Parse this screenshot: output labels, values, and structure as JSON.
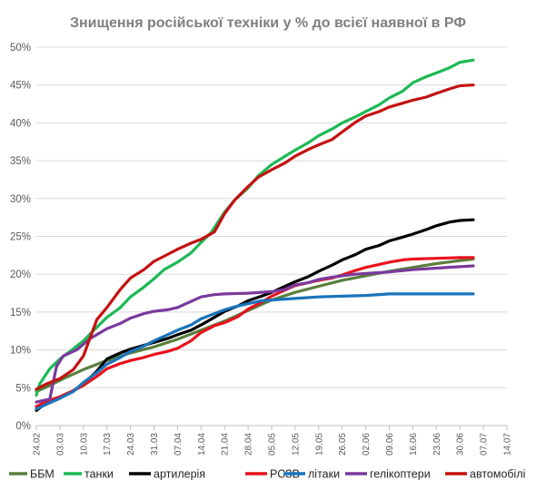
{
  "chart_data": {
    "type": "line",
    "title": "Знищення російської техніки у % до всієї наявної в РФ",
    "xlabel": "",
    "ylabel": "",
    "ylim": [
      0,
      50
    ],
    "y_ticks": [
      "0%",
      "5%",
      "10%",
      "15%",
      "20%",
      "25%",
      "30%",
      "35%",
      "40%",
      "45%",
      "50%"
    ],
    "x_ticks": [
      "24.02",
      "03.03",
      "10.03",
      "17.03",
      "24.03",
      "31.03",
      "07.04",
      "14.04",
      "21.04",
      "28.04",
      "05.05",
      "12.05",
      "19.05",
      "26.05",
      "02.06",
      "09.06",
      "16.06",
      "23.06",
      "30.06",
      "07.07",
      "14.07"
    ],
    "grid": true,
    "legend_position": "bottom",
    "series": [
      {
        "name": "ББМ",
        "color": "#5a7f3c",
        "points": [
          [
            0,
            4.5
          ],
          [
            4,
            5.3
          ],
          [
            8,
            6.2
          ],
          [
            14,
            7.4
          ],
          [
            21,
            8.6
          ],
          [
            28,
            9.6
          ],
          [
            35,
            10.4
          ],
          [
            42,
            11.4
          ],
          [
            49,
            12.6
          ],
          [
            56,
            13.8
          ],
          [
            63,
            15.2
          ],
          [
            70,
            16.6
          ],
          [
            77,
            17.6
          ],
          [
            84,
            18.4
          ],
          [
            91,
            19.2
          ],
          [
            98,
            19.8
          ],
          [
            105,
            20.4
          ],
          [
            112,
            20.9
          ],
          [
            119,
            21.4
          ],
          [
            126,
            21.8
          ],
          [
            130,
            22.0
          ]
        ]
      },
      {
        "name": "танки",
        "color": "#1db954",
        "points": [
          [
            0,
            4.0
          ],
          [
            1,
            5.5
          ],
          [
            4,
            7.5
          ],
          [
            7,
            8.8
          ],
          [
            10,
            9.8
          ],
          [
            14,
            11.2
          ],
          [
            18,
            13.0
          ],
          [
            21,
            14.3
          ],
          [
            25,
            15.6
          ],
          [
            28,
            17.0
          ],
          [
            32,
            18.3
          ],
          [
            35,
            19.4
          ],
          [
            38,
            20.6
          ],
          [
            42,
            21.6
          ],
          [
            46,
            22.8
          ],
          [
            49,
            24.2
          ],
          [
            52,
            25.5
          ],
          [
            56,
            28.2
          ],
          [
            59,
            29.8
          ],
          [
            63,
            31.4
          ],
          [
            66,
            33.0
          ],
          [
            70,
            34.5
          ],
          [
            74,
            35.6
          ],
          [
            77,
            36.4
          ],
          [
            81,
            37.4
          ],
          [
            84,
            38.3
          ],
          [
            88,
            39.2
          ],
          [
            91,
            40.0
          ],
          [
            95,
            40.8
          ],
          [
            98,
            41.5
          ],
          [
            102,
            42.4
          ],
          [
            105,
            43.3
          ],
          [
            109,
            44.2
          ],
          [
            112,
            45.3
          ],
          [
            116,
            46.1
          ],
          [
            119,
            46.6
          ],
          [
            123,
            47.3
          ],
          [
            126,
            48.0
          ],
          [
            130,
            48.3
          ]
        ]
      },
      {
        "name": "артилерія",
        "color": "#000000",
        "points": [
          [
            0,
            2.0
          ],
          [
            3,
            3.0
          ],
          [
            7,
            3.8
          ],
          [
            11,
            4.6
          ],
          [
            14,
            5.5
          ],
          [
            18,
            7.2
          ],
          [
            21,
            8.8
          ],
          [
            25,
            9.6
          ],
          [
            28,
            10.1
          ],
          [
            32,
            10.6
          ],
          [
            35,
            11.0
          ],
          [
            39,
            11.5
          ],
          [
            42,
            12.0
          ],
          [
            46,
            12.6
          ],
          [
            49,
            13.3
          ],
          [
            53,
            14.3
          ],
          [
            56,
            15.1
          ],
          [
            60,
            15.8
          ],
          [
            63,
            16.5
          ],
          [
            67,
            17.1
          ],
          [
            70,
            17.6
          ],
          [
            74,
            18.4
          ],
          [
            77,
            19.0
          ],
          [
            81,
            19.7
          ],
          [
            84,
            20.4
          ],
          [
            88,
            21.2
          ],
          [
            91,
            21.9
          ],
          [
            95,
            22.6
          ],
          [
            98,
            23.3
          ],
          [
            102,
            23.8
          ],
          [
            105,
            24.4
          ],
          [
            109,
            24.9
          ],
          [
            112,
            25.3
          ],
          [
            116,
            25.9
          ],
          [
            119,
            26.4
          ],
          [
            123,
            26.9
          ],
          [
            126,
            27.1
          ],
          [
            130,
            27.2
          ]
        ]
      },
      {
        "name": "РСЗВ",
        "color": "#e8121d",
        "points": [
          [
            0,
            2.5
          ],
          [
            3,
            3.2
          ],
          [
            7,
            3.8
          ],
          [
            11,
            4.6
          ],
          [
            14,
            5.3
          ],
          [
            18,
            6.5
          ],
          [
            21,
            7.5
          ],
          [
            25,
            8.2
          ],
          [
            28,
            8.6
          ],
          [
            32,
            9.0
          ],
          [
            35,
            9.4
          ],
          [
            39,
            9.8
          ],
          [
            42,
            10.2
          ],
          [
            46,
            11.2
          ],
          [
            49,
            12.3
          ],
          [
            53,
            13.2
          ],
          [
            56,
            13.6
          ],
          [
            60,
            14.4
          ],
          [
            63,
            15.4
          ],
          [
            67,
            16.3
          ],
          [
            70,
            17.1
          ],
          [
            74,
            17.9
          ],
          [
            77,
            18.5
          ],
          [
            81,
            18.9
          ],
          [
            84,
            19.2
          ],
          [
            88,
            19.5
          ],
          [
            91,
            19.9
          ],
          [
            95,
            20.5
          ],
          [
            98,
            20.9
          ],
          [
            102,
            21.3
          ],
          [
            105,
            21.6
          ],
          [
            109,
            21.9
          ],
          [
            112,
            22.0
          ],
          [
            119,
            22.1
          ],
          [
            126,
            22.2
          ],
          [
            130,
            22.2
          ]
        ]
      },
      {
        "name": "літаки",
        "color": "#1a74bb",
        "points": [
          [
            0,
            2.2
          ],
          [
            3,
            2.8
          ],
          [
            7,
            3.6
          ],
          [
            11,
            4.5
          ],
          [
            14,
            5.7
          ],
          [
            18,
            7.0
          ],
          [
            21,
            8.1
          ],
          [
            25,
            9.0
          ],
          [
            28,
            9.8
          ],
          [
            32,
            10.5
          ],
          [
            35,
            11.2
          ],
          [
            39,
            12.0
          ],
          [
            42,
            12.6
          ],
          [
            46,
            13.3
          ],
          [
            49,
            14.1
          ],
          [
            53,
            14.8
          ],
          [
            56,
            15.3
          ],
          [
            60,
            15.8
          ],
          [
            63,
            16.1
          ],
          [
            67,
            16.5
          ],
          [
            70,
            16.6
          ],
          [
            77,
            16.8
          ],
          [
            84,
            17.0
          ],
          [
            91,
            17.1
          ],
          [
            98,
            17.2
          ],
          [
            105,
            17.4
          ],
          [
            112,
            17.4
          ],
          [
            119,
            17.4
          ],
          [
            126,
            17.4
          ],
          [
            130,
            17.4
          ]
        ]
      },
      {
        "name": "гелікоптери",
        "color": "#7a3a9c",
        "points": [
          [
            0,
            3.1
          ],
          [
            4,
            3.5
          ],
          [
            6,
            7.8
          ],
          [
            8,
            9.2
          ],
          [
            12,
            10.0
          ],
          [
            16,
            11.5
          ],
          [
            21,
            12.8
          ],
          [
            25,
            13.5
          ],
          [
            28,
            14.2
          ],
          [
            32,
            14.8
          ],
          [
            35,
            15.1
          ],
          [
            39,
            15.3
          ],
          [
            42,
            15.6
          ],
          [
            46,
            16.4
          ],
          [
            49,
            17.0
          ],
          [
            53,
            17.3
          ],
          [
            56,
            17.4
          ],
          [
            63,
            17.5
          ],
          [
            70,
            17.7
          ],
          [
            74,
            18.0
          ],
          [
            77,
            18.6
          ],
          [
            81,
            18.9
          ],
          [
            84,
            19.3
          ],
          [
            88,
            19.6
          ],
          [
            91,
            19.8
          ],
          [
            95,
            20.0
          ],
          [
            98,
            20.1
          ],
          [
            105,
            20.3
          ],
          [
            112,
            20.6
          ],
          [
            119,
            20.8
          ],
          [
            126,
            21.0
          ],
          [
            130,
            21.1
          ]
        ]
      },
      {
        "name": "автомобілі",
        "color": "#c41111",
        "points": [
          [
            0,
            4.8
          ],
          [
            3,
            5.5
          ],
          [
            7,
            6.2
          ],
          [
            11,
            7.4
          ],
          [
            14,
            9.2
          ],
          [
            18,
            14.0
          ],
          [
            21,
            15.6
          ],
          [
            25,
            18.0
          ],
          [
            28,
            19.5
          ],
          [
            32,
            20.6
          ],
          [
            35,
            21.7
          ],
          [
            39,
            22.6
          ],
          [
            42,
            23.3
          ],
          [
            46,
            24.1
          ],
          [
            49,
            24.6
          ],
          [
            53,
            25.6
          ],
          [
            56,
            28.0
          ],
          [
            59,
            29.8
          ],
          [
            63,
            31.6
          ],
          [
            66,
            32.8
          ],
          [
            70,
            33.8
          ],
          [
            74,
            34.7
          ],
          [
            77,
            35.6
          ],
          [
            81,
            36.5
          ],
          [
            84,
            37.1
          ],
          [
            88,
            37.8
          ],
          [
            91,
            38.8
          ],
          [
            95,
            40.1
          ],
          [
            98,
            40.9
          ],
          [
            102,
            41.5
          ],
          [
            105,
            42.1
          ],
          [
            109,
            42.6
          ],
          [
            112,
            43.0
          ],
          [
            116,
            43.4
          ],
          [
            119,
            43.9
          ],
          [
            123,
            44.5
          ],
          [
            126,
            44.9
          ],
          [
            130,
            45.0
          ]
        ]
      }
    ]
  }
}
